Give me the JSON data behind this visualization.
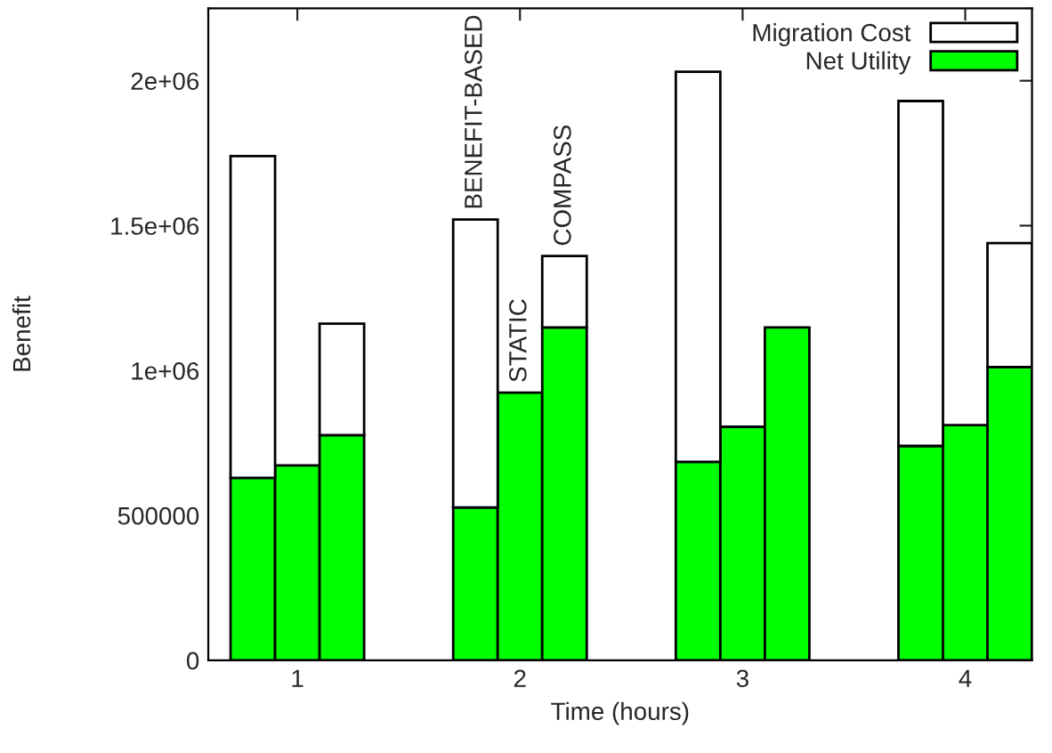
{
  "chart_data": {
    "type": "bar",
    "xlabel": "Time (hours)",
    "ylabel": "Benefit",
    "categories": [
      null,
      "1",
      null,
      null,
      null,
      null,
      "2",
      null,
      null,
      null,
      null,
      "3",
      null,
      null,
      null,
      null,
      "4",
      null
    ],
    "stacked": true,
    "series": [
      {
        "name": "Net Utility",
        "color": "#00ff00",
        "values": [
          630000,
          673000,
          777000,
          null,
          null,
          528000,
          924000,
          1149000,
          null,
          null,
          685000,
          806000,
          1149000,
          null,
          null,
          740000,
          812000,
          1012000
        ]
      },
      {
        "name": "Migration Cost",
        "color": "#ffffff",
        "values": [
          1110000,
          null,
          385000,
          null,
          null,
          993000,
          null,
          246000,
          null,
          null,
          1346000,
          null,
          null,
          null,
          null,
          1190000,
          null,
          428000
        ]
      }
    ],
    "ylim": [
      0,
      2250000
    ],
    "yticks": [
      0,
      500000,
      {
        "value": 1000000,
        "label": "1e+06"
      },
      {
        "value": 1500000,
        "label": "1.5e+06"
      },
      {
        "value": 2000000,
        "label": "2e+06"
      }
    ],
    "annotations": [
      {
        "text": "BENEFIT-BASED",
        "y": 1521000
      },
      {
        "text": "STATIC",
        "y": 924000
      },
      {
        "text": "COMPASS",
        "y": 1395000
      }
    ],
    "legend": "top right",
    "grid": false
  }
}
